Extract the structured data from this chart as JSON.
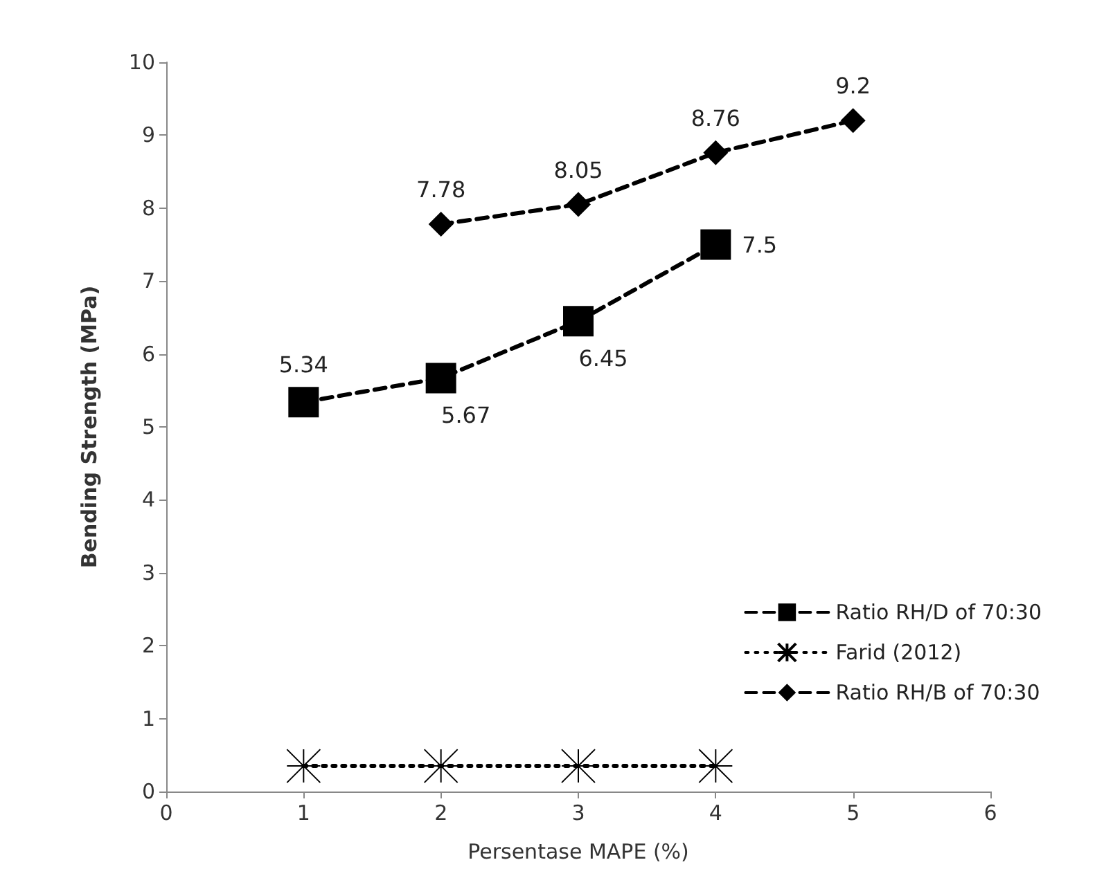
{
  "chart_data": {
    "type": "line",
    "xlabel": "Persentase MAPE (%)",
    "ylabel": "Bending Strength (MPa)",
    "series": [
      {
        "name": "Ratio RH/D of 70:30",
        "color": "#000000",
        "marker": "square",
        "line_style": "dashed",
        "x": [
          1,
          2,
          3,
          4
        ],
        "values": [
          5.34,
          5.67,
          6.45,
          7.5
        ],
        "value_labels": [
          "5.34",
          "5.67",
          "6.45",
          "7.5"
        ]
      },
      {
        "name": "Farid (2012)",
        "color": "#000000",
        "marker": "cross",
        "line_style": "dotted",
        "x": [
          1,
          2,
          3,
          4
        ],
        "values": [
          0.35,
          0.35,
          0.35,
          0.35
        ]
      },
      {
        "name": "Ratio RH/B of 70:30",
        "color": "#000000",
        "marker": "diamond",
        "line_style": "dashed",
        "x": [
          2,
          3,
          4,
          5
        ],
        "values": [
          7.78,
          8.05,
          8.76,
          9.2
        ],
        "value_labels": [
          "7.78",
          "8.05",
          "8.76",
          "9.2"
        ]
      }
    ],
    "xlim": [
      0,
      6
    ],
    "xticks": [
      0,
      1,
      2,
      3,
      4,
      5,
      6
    ],
    "ylim": [
      0,
      10
    ],
    "yticks": [
      0,
      1,
      2,
      3,
      4,
      5,
      6,
      7,
      8,
      9,
      10
    ],
    "grid": false,
    "legend": "right"
  }
}
